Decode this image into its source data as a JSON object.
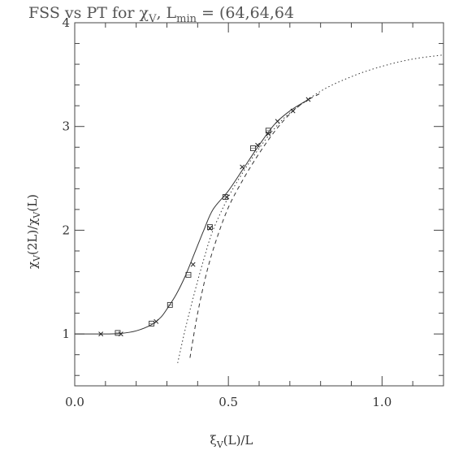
{
  "chart_data": {
    "type": "line",
    "title_parts": {
      "base": "FSS vs PT for χ",
      "sub1": "V",
      "mid": ", L",
      "sub2": "min",
      "rest": " = (64,64,64"
    },
    "xlabel_parts": {
      "base": "ξ",
      "sub": "V",
      "rest": "(L)/L"
    },
    "ylabel_parts": {
      "base": "χ",
      "sub1": "V",
      "mid": "(2L)/χ",
      "sub2": "V",
      "rest": "(L)"
    },
    "xlim": [
      0.0,
      1.2
    ],
    "ylim": [
      0.5,
      4.0
    ],
    "x_tick_labels": [
      "0.0",
      "0.5",
      "1.0"
    ],
    "x_tick_values": [
      0.0,
      0.5,
      1.0
    ],
    "x_minor_ticks": [
      0.1,
      0.2,
      0.3,
      0.4,
      0.6,
      0.7,
      0.8,
      0.9,
      1.1
    ],
    "y_tick_labels": [
      "1",
      "2",
      "3",
      "4"
    ],
    "y_tick_values": [
      1,
      2,
      3,
      4
    ],
    "y_minor_ticks": [
      0.6,
      0.8,
      1.2,
      1.4,
      1.6,
      1.8,
      2.2,
      2.4,
      2.6,
      2.8,
      3.2,
      3.4,
      3.6,
      3.8
    ],
    "grid": false,
    "series": [
      {
        "style": "solid",
        "color": "#333333",
        "points": [
          [
            0.0,
            1.0
          ],
          [
            0.1,
            1.0
          ],
          [
            0.15,
            1.005
          ],
          [
            0.2,
            1.03
          ],
          [
            0.25,
            1.09
          ],
          [
            0.28,
            1.16
          ],
          [
            0.3,
            1.24
          ],
          [
            0.33,
            1.38
          ],
          [
            0.36,
            1.56
          ],
          [
            0.39,
            1.78
          ],
          [
            0.42,
            2.0
          ],
          [
            0.45,
            2.2
          ],
          [
            0.5,
            2.38
          ],
          [
            0.55,
            2.6
          ],
          [
            0.6,
            2.82
          ],
          [
            0.65,
            3.02
          ],
          [
            0.7,
            3.15
          ],
          [
            0.76,
            3.26
          ]
        ]
      },
      {
        "style": "dotted",
        "color": "#333333",
        "points": [
          [
            0.335,
            0.72
          ],
          [
            0.36,
            1.05
          ],
          [
            0.39,
            1.4
          ],
          [
            0.42,
            1.72
          ],
          [
            0.45,
            2.0
          ],
          [
            0.5,
            2.32
          ],
          [
            0.55,
            2.57
          ],
          [
            0.6,
            2.79
          ],
          [
            0.65,
            2.98
          ],
          [
            0.7,
            3.13
          ],
          [
            0.8,
            3.34
          ],
          [
            0.9,
            3.48
          ],
          [
            1.0,
            3.58
          ],
          [
            1.1,
            3.65
          ],
          [
            1.2,
            3.69
          ]
        ]
      },
      {
        "style": "dashed",
        "color": "#333333",
        "points": [
          [
            0.375,
            0.77
          ],
          [
            0.4,
            1.2
          ],
          [
            0.43,
            1.6
          ],
          [
            0.46,
            1.9
          ],
          [
            0.5,
            2.22
          ],
          [
            0.55,
            2.5
          ],
          [
            0.6,
            2.74
          ],
          [
            0.65,
            2.95
          ],
          [
            0.7,
            3.12
          ],
          [
            0.75,
            3.24
          ],
          [
            0.8,
            3.32
          ]
        ]
      }
    ],
    "markers_x": [
      [
        0.085,
        1.0
      ],
      [
        0.15,
        1.0
      ],
      [
        0.265,
        1.12
      ],
      [
        0.385,
        1.67
      ],
      [
        0.44,
        2.02
      ],
      [
        0.495,
        2.32
      ],
      [
        0.545,
        2.61
      ],
      [
        0.595,
        2.82
      ],
      [
        0.63,
        2.93
      ],
      [
        0.66,
        3.05
      ],
      [
        0.71,
        3.15
      ],
      [
        0.76,
        3.26
      ]
    ],
    "markers_box": [
      [
        0.14,
        1.01
      ],
      [
        0.25,
        1.1
      ],
      [
        0.31,
        1.28
      ],
      [
        0.37,
        1.57
      ],
      [
        0.44,
        2.03
      ],
      [
        0.49,
        2.32
      ],
      [
        0.58,
        2.79
      ],
      [
        0.63,
        2.96
      ]
    ]
  }
}
